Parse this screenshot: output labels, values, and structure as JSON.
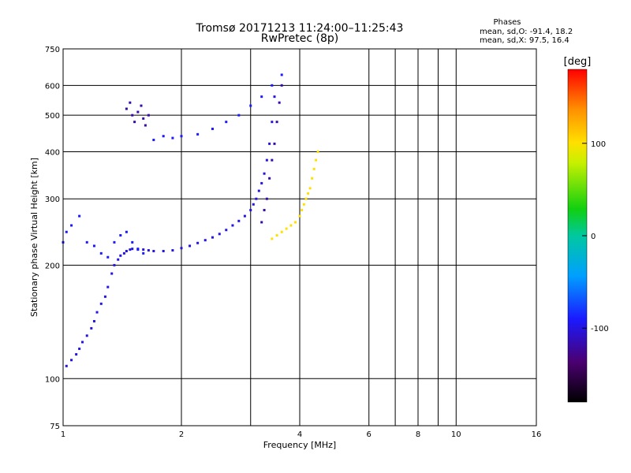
{
  "chart_data": {
    "type": "scatter",
    "title": "Tromsø 20171213 11:24:00–11:25:43",
    "subtitle": "RwPretec (8p)",
    "xlabel": "Frequency [MHz]",
    "ylabel": "Stationary phase Virtual Height [km]",
    "xscale": "log",
    "yscale": "log",
    "xlim": [
      1,
      16
    ],
    "ylim": [
      75,
      750
    ],
    "x_ticks": [
      1,
      2,
      4,
      6,
      8,
      10,
      16
    ],
    "x_tick_labels": [
      "1",
      "2",
      "4",
      "6",
      "8",
      "10",
      "16"
    ],
    "x_grid": [
      1,
      2,
      3,
      4,
      6,
      7,
      8,
      9,
      10
    ],
    "y_ticks": [
      75,
      100,
      200,
      300,
      400,
      500,
      600,
      750
    ],
    "y_tick_labels": [
      "75",
      "100",
      "200",
      "300",
      "400",
      "500",
      "600",
      "750"
    ],
    "y_grid": [
      100,
      200,
      300,
      400,
      500,
      600
    ],
    "grid": true,
    "stats": {
      "heading": "Phases",
      "line_o": "mean, sd,O: -91.4, 18.2",
      "line_x": "mean, sd,X:  97.5, 16.4"
    },
    "colorbar": {
      "label": "[deg]",
      "range": [
        -180,
        180
      ],
      "ticks": [
        -100,
        0,
        100
      ],
      "tick_labels": [
        "-100",
        "0",
        "100"
      ]
    },
    "series": [
      {
        "color_phase": -100,
        "x": [
          1.02,
          1.05,
          1.08,
          1.1,
          1.12,
          1.15,
          1.18,
          1.2,
          1.22,
          1.25,
          1.28,
          1.3,
          1.33,
          1.35,
          1.38,
          1.4,
          1.43,
          1.45,
          1.48,
          1.5,
          1.55,
          1.6,
          1.65,
          1.7,
          1.8,
          1.9,
          2.0,
          2.1,
          2.2,
          2.3,
          2.4,
          2.5,
          2.6,
          2.7,
          2.8,
          2.9,
          3.0,
          3.05,
          3.1,
          3.15,
          3.2,
          3.25,
          3.3,
          3.35,
          3.4,
          3.45
        ],
        "y": [
          108,
          112,
          116,
          120,
          125,
          130,
          136,
          142,
          150,
          158,
          165,
          175,
          190,
          200,
          207,
          212,
          215,
          218,
          220,
          221,
          221,
          220,
          219,
          218,
          218,
          219,
          222,
          225,
          229,
          233,
          237,
          242,
          248,
          255,
          262,
          270,
          280,
          290,
          300,
          315,
          330,
          350,
          380,
          420,
          480,
          560
        ]
      },
      {
        "color_phase": -90,
        "x": [
          1.0,
          1.02,
          1.05,
          1.1,
          1.15,
          1.2,
          1.25,
          1.3,
          1.35,
          1.4,
          1.45,
          1.5,
          1.55,
          1.6,
          1.7,
          1.8,
          1.9,
          2.0,
          2.2,
          2.4,
          2.6,
          2.8,
          3.0,
          3.2,
          3.4,
          3.6
        ],
        "y": [
          230,
          245,
          255,
          270,
          230,
          225,
          215,
          210,
          230,
          240,
          245,
          230,
          220,
          215,
          430,
          440,
          435,
          440,
          445,
          460,
          480,
          500,
          530,
          560,
          600,
          640
        ]
      },
      {
        "color_phase": -120,
        "x": [
          1.45,
          1.48,
          1.5,
          1.52,
          1.55,
          1.58,
          1.6,
          1.62,
          1.65,
          3.2,
          3.25,
          3.3,
          3.35,
          3.4,
          3.45,
          3.5,
          3.55,
          3.6
        ],
        "y": [
          520,
          540,
          500,
          480,
          510,
          530,
          490,
          470,
          500,
          260,
          280,
          300,
          340,
          380,
          420,
          480,
          540,
          600
        ]
      },
      {
        "color_phase": 100,
        "x": [
          3.4,
          3.5,
          3.6,
          3.7,
          3.8,
          3.9,
          4.0,
          4.05,
          4.1,
          4.15,
          4.2,
          4.25,
          4.3,
          4.35,
          4.4,
          4.45
        ],
        "y": [
          235,
          240,
          245,
          250,
          255,
          260,
          270,
          280,
          290,
          300,
          310,
          320,
          340,
          360,
          380,
          400
        ]
      }
    ]
  }
}
